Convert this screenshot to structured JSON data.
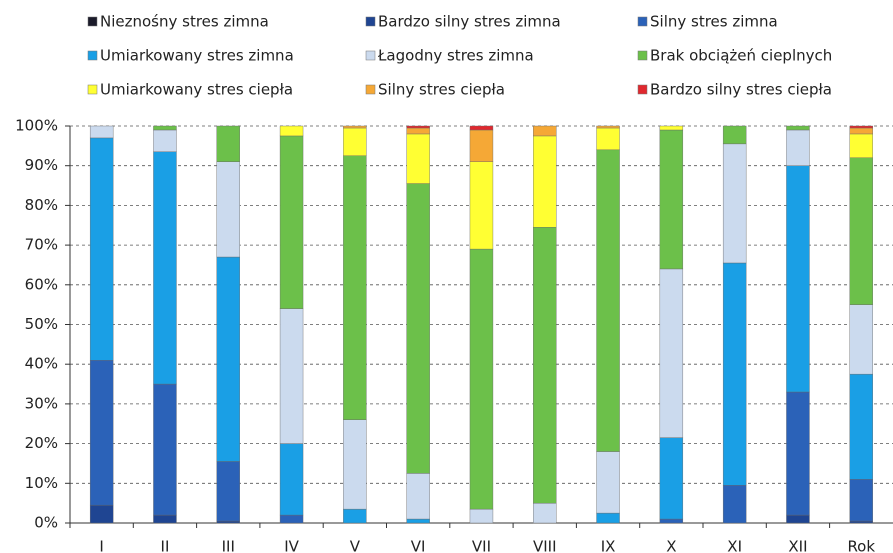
{
  "chart_data": {
    "type": "stacked-bar",
    "categories": [
      "I",
      "II",
      "III",
      "IV",
      "V",
      "VI",
      "VII",
      "VIII",
      "IX",
      "X",
      "XI",
      "XII",
      "Rok"
    ],
    "series": [
      {
        "name": "Nieznośny stres zimna",
        "color": "#1b1b2a",
        "values": [
          0,
          0,
          0,
          0,
          0,
          0,
          0,
          0,
          0,
          0,
          0,
          0,
          0
        ]
      },
      {
        "name": "Bardzo silny stres zimna",
        "color": "#1f4592",
        "values": [
          4.5,
          2,
          0.5,
          0,
          0,
          0,
          0,
          0,
          0,
          0,
          0,
          2,
          0.5
        ]
      },
      {
        "name": "Silny stres zimna",
        "color": "#2b62b8",
        "values": [
          36.5,
          33,
          15,
          2,
          0,
          0,
          0,
          0,
          0,
          1,
          9.5,
          31,
          10.5
        ]
      },
      {
        "name": "Umiarkowany stres zimna",
        "color": "#1a9fe5",
        "values": [
          56,
          58.5,
          51.5,
          18,
          3.5,
          1,
          0,
          0,
          2.5,
          20.5,
          56,
          57,
          26.5
        ]
      },
      {
        "name": "Łagodny stres zimna",
        "color": "#cbdaee",
        "values": [
          3,
          5.5,
          24,
          34,
          22.5,
          11.5,
          3.5,
          5,
          15.5,
          42.5,
          30,
          9,
          17.5
        ]
      },
      {
        "name": "Brak obciążeń cieplnych",
        "color": "#6cc04a",
        "values": [
          0,
          1,
          9,
          43.5,
          66.5,
          73,
          65.5,
          69.5,
          76,
          35,
          4.5,
          1,
          37
        ]
      },
      {
        "name": "Umiarkowany stres ciepła",
        "color": "#ffff33",
        "values": [
          0,
          0,
          0,
          2.5,
          7,
          12.5,
          22,
          23,
          5.5,
          1,
          0,
          0,
          6
        ]
      },
      {
        "name": "Silny stres ciepła",
        "color": "#f5a836",
        "values": [
          0,
          0,
          0,
          0,
          0.5,
          1.5,
          8,
          2.5,
          0.5,
          0,
          0,
          0,
          1.5
        ]
      },
      {
        "name": "Bardzo silny stres ciepła",
        "color": "#e0282e",
        "values": [
          0,
          0,
          0,
          0,
          0,
          0.5,
          1,
          0,
          0,
          0,
          0,
          0,
          0.5
        ]
      }
    ],
    "ylim": [
      0,
      100
    ],
    "yticks": [
      {
        "value": 0,
        "label": "0%"
      },
      {
        "value": 10,
        "label": "10%"
      },
      {
        "value": 20,
        "label": "20%"
      },
      {
        "value": 30,
        "label": "30%"
      },
      {
        "value": 40,
        "label": "40%"
      },
      {
        "value": 50,
        "label": "50%"
      },
      {
        "value": 60,
        "label": "60%"
      },
      {
        "value": 70,
        "label": "70%"
      },
      {
        "value": 80,
        "label": "80%"
      },
      {
        "value": 90,
        "label": "90%"
      },
      {
        "value": 100,
        "label": "100%"
      }
    ],
    "grid": true
  }
}
